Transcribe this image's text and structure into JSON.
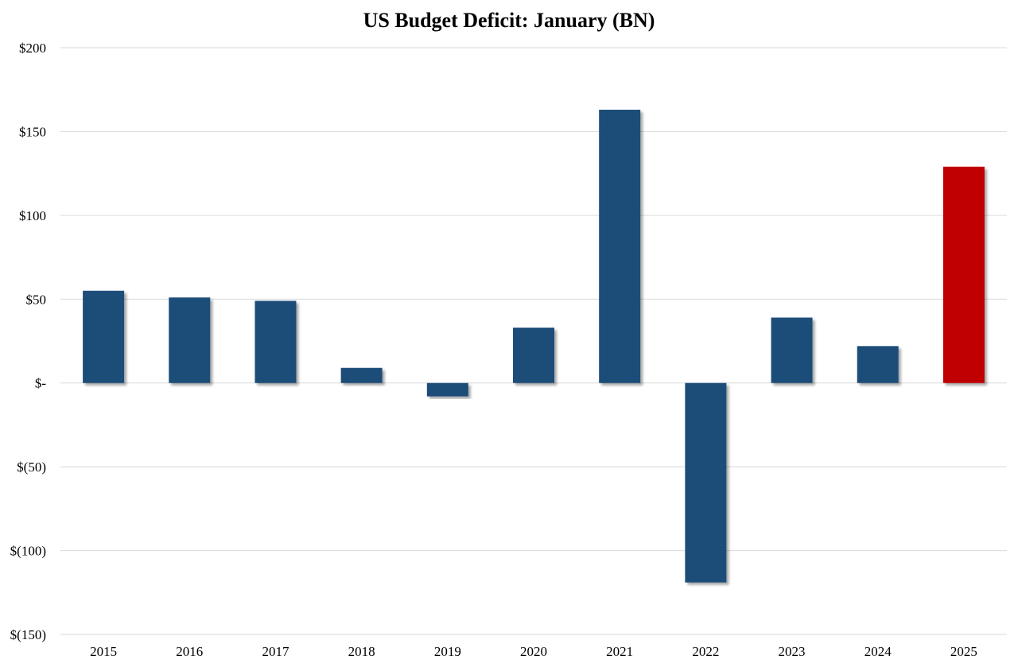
{
  "chart_data": {
    "type": "bar",
    "title": "US Budget Deficit: January (BN)",
    "xlabel": "",
    "ylabel": "",
    "categories": [
      "2015",
      "2016",
      "2017",
      "2018",
      "2019",
      "2020",
      "2021",
      "2022",
      "2023",
      "2024",
      "2025"
    ],
    "series": [
      {
        "name": "US Budget Deficit",
        "values": [
          55,
          51,
          49,
          9,
          -8,
          33,
          163,
          -119,
          39,
          22,
          129
        ]
      }
    ],
    "highlight_index": 10,
    "ylim": [
      -150,
      200
    ],
    "yticks": [
      200,
      150,
      100,
      50,
      0,
      -50,
      -100,
      -150
    ],
    "ytick_labels": [
      "$200",
      "$150",
      "$100",
      "$50",
      "$-",
      "$(50)",
      "$(100)",
      "$(150)"
    ],
    "grid": true,
    "legend": "none",
    "colors": {
      "bar": "#1f4e79",
      "highlight": "#c00000",
      "grid": "#d9d9d9",
      "baseline": "#d9d9d9"
    }
  }
}
